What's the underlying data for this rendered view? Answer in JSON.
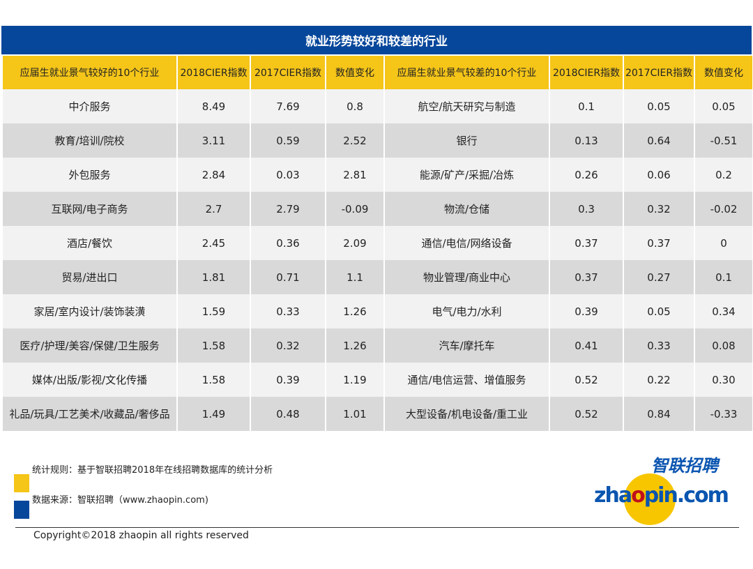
{
  "title": "就业形势较好和较差的行业",
  "headers": [
    "应届生就业景气较好的10个行业",
    "2018CIER指数",
    "2017CIER指数",
    "数值变化",
    "应届生就业景气较差的10个行业",
    "2018CIER指数",
    "2017CIER指数",
    "数值变化"
  ],
  "rows": [
    [
      "中介服务",
      "8.49",
      "7.69",
      "0.8",
      "航空/航天研究与制造",
      "0.1",
      "0.05",
      "0.05"
    ],
    [
      "教育/培训/院校",
      "3.11",
      "0.59",
      "2.52",
      "银行",
      "0.13",
      "0.64",
      "-0.51"
    ],
    [
      "外包服务",
      "2.84",
      "0.03",
      "2.81",
      "能源/矿产/采掘/冶炼",
      "0.26",
      "0.06",
      "0.2"
    ],
    [
      "互联网/电子商务",
      "2.7",
      "2.79",
      "-0.09",
      "物流/仓储",
      "0.3",
      "0.32",
      "-0.02"
    ],
    [
      "酒店/餐饮",
      "2.45",
      "0.36",
      "2.09",
      "通信/电信/网络设备",
      "0.37",
      "0.37",
      "0"
    ],
    [
      "贸易/进出口",
      "1.81",
      "0.71",
      "1.1",
      "物业管理/商业中心",
      "0.37",
      "0.27",
      "0.1"
    ],
    [
      "家居/室内设计/装饰装潢",
      "1.59",
      "0.33",
      "1.26",
      "电气/电力/水利",
      "0.39",
      "0.05",
      "0.34"
    ],
    [
      "医疗/护理/美容/保健/卫生服务",
      "1.58",
      "0.32",
      "1.26",
      "汽车/摩托车",
      "0.41",
      "0.33",
      "0.08"
    ],
    [
      "媒体/出版/影视/文化传播",
      "1.58",
      "0.39",
      "1.19",
      "通信/电信运营、增值服务",
      "0.52",
      "0.22",
      "0.30"
    ],
    [
      "礼品/玩具/工艺美术/收藏品/奢侈品",
      "1.49",
      "0.48",
      "1.01",
      "大型设备/机电设备/重工业",
      "0.52",
      "0.84",
      "-0.33"
    ]
  ],
  "notes": {
    "rule": "统计规则：基于智联招聘2018年在线招聘数据库的统计分析",
    "source": "数据来源：智联招聘（www.zhaopin.com)"
  },
  "logo": {
    "cn": "智联招聘",
    "en": "zhaopin.com"
  },
  "copyright": "Copyright©2018 zhaopin all rights reserved",
  "colors": {
    "blue": "#06479b",
    "yellow": "#f5c518"
  }
}
